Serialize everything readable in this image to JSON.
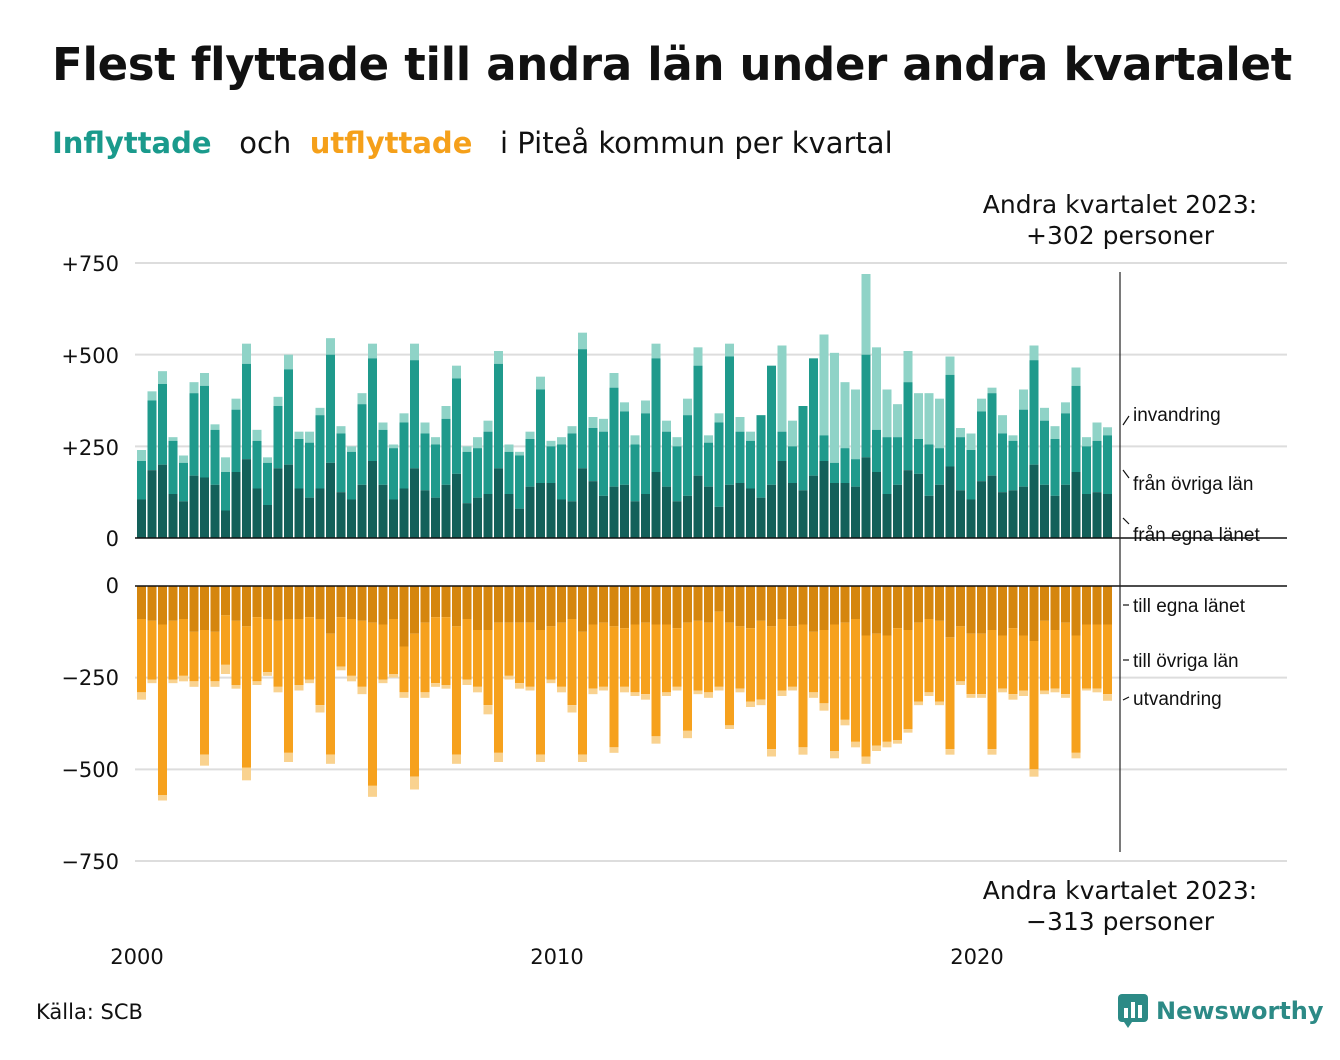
{
  "title": "Flest flyttade till andra län under andra kvartalet",
  "subtitle": {
    "part1": "Inflyttade",
    "part2": "och",
    "part3": "utflyttade",
    "part4": "i Piteå kommun per kvartal"
  },
  "source": "Källa: SCB",
  "logo_text": "Newsworthy",
  "colors": {
    "in_local": "#13605a",
    "in_other": "#1f9a8c",
    "in_immig": "#8fd3c7",
    "out_local": "#d5860e",
    "out_other": "#f6a11d",
    "out_emig": "#f9d28f"
  },
  "chart_data": {
    "type": "bar",
    "stacked": true,
    "diverging": true,
    "x_start": "2000 Q1",
    "x_end": "2023 Q2",
    "x_ticks": [
      "2000",
      "2010",
      "2020"
    ],
    "y_ticks_top": [
      "+750",
      "+500",
      "+250",
      "0"
    ],
    "y_ticks_bottom": [
      "0",
      "−250",
      "−500",
      "−750"
    ],
    "ylim_top": [
      0,
      750
    ],
    "ylim_bottom": [
      -750,
      0
    ],
    "labels_top": [
      "invandring",
      "från övriga län",
      "från egna länet"
    ],
    "labels_bottom": [
      "till egna länet",
      "till övriga län",
      "utvandring"
    ],
    "annotation_top": [
      "Andra kvartalet 2023:",
      "+302 personer"
    ],
    "annotation_bottom": [
      "Andra kvartalet 2023:",
      "−313 personer"
    ],
    "inflyttade_total": [
      240,
      400,
      455,
      275,
      225,
      425,
      450,
      310,
      220,
      380,
      530,
      295,
      220,
      385,
      500,
      290,
      290,
      355,
      545,
      305,
      250,
      395,
      530,
      315,
      255,
      340,
      530,
      315,
      275,
      360,
      470,
      250,
      275,
      320,
      510,
      255,
      235,
      290,
      440,
      265,
      275,
      305,
      560,
      330,
      325,
      450,
      370,
      280,
      375,
      530,
      320,
      275,
      380,
      520,
      280,
      340,
      530,
      330,
      290,
      280,
      410,
      525,
      320,
      280,
      395,
      555,
      505,
      425,
      405,
      720,
      520,
      405,
      365,
      510,
      395,
      395,
      380,
      495,
      300,
      285,
      380,
      410,
      335,
      280,
      405,
      525,
      355,
      305,
      370,
      465,
      275,
      315,
      302
    ],
    "inflyttade_other_top": [
      210,
      375,
      420,
      265,
      205,
      395,
      415,
      295,
      180,
      350,
      475,
      265,
      205,
      360,
      460,
      270,
      260,
      335,
      500,
      285,
      235,
      365,
      490,
      295,
      245,
      315,
      485,
      285,
      255,
      325,
      435,
      235,
      245,
      290,
      475,
      235,
      225,
      270,
      405,
      250,
      255,
      285,
      515,
      300,
      290,
      410,
      345,
      255,
      340,
      490,
      290,
      250,
      335,
      470,
      260,
      315,
      495,
      290,
      265,
      335,
      470,
      290,
      250,
      360,
      490,
      280,
      205,
      245,
      215,
      500,
      295,
      275,
      275,
      425,
      270,
      255,
      245,
      445,
      275,
      240,
      345,
      395,
      285,
      265,
      350,
      485,
      320,
      270,
      340,
      415,
      250,
      265,
      280
    ],
    "inflyttade_local": [
      105,
      185,
      200,
      120,
      100,
      170,
      165,
      145,
      75,
      180,
      215,
      135,
      90,
      190,
      200,
      135,
      110,
      135,
      205,
      125,
      105,
      145,
      210,
      145,
      105,
      135,
      190,
      130,
      110,
      145,
      175,
      95,
      110,
      120,
      190,
      120,
      80,
      140,
      150,
      150,
      105,
      100,
      190,
      155,
      115,
      140,
      145,
      100,
      120,
      180,
      140,
      100,
      115,
      170,
      140,
      85,
      145,
      150,
      135,
      110,
      145,
      210,
      150,
      130,
      170,
      210,
      150,
      150,
      140,
      220,
      180,
      120,
      145,
      185,
      175,
      115,
      145,
      195,
      130,
      105,
      155,
      170,
      125,
      130,
      140,
      200,
      145,
      115,
      145,
      180,
      120,
      125,
      120
    ],
    "utflyttade_total": [
      310,
      265,
      585,
      265,
      260,
      275,
      490,
      275,
      240,
      280,
      530,
      270,
      245,
      290,
      480,
      285,
      265,
      345,
      485,
      230,
      260,
      295,
      575,
      265,
      250,
      305,
      555,
      305,
      275,
      280,
      485,
      270,
      290,
      350,
      480,
      255,
      280,
      285,
      480,
      265,
      290,
      345,
      480,
      295,
      285,
      455,
      290,
      300,
      310,
      430,
      300,
      285,
      415,
      295,
      305,
      285,
      390,
      290,
      330,
      325,
      465,
      300,
      285,
      460,
      305,
      340,
      470,
      380,
      440,
      485,
      450,
      440,
      430,
      400,
      325,
      300,
      325,
      460,
      270,
      305,
      305,
      460,
      290,
      310,
      300,
      520,
      295,
      290,
      305,
      470,
      285,
      290,
      313
    ],
    "utflyttade_other_bottom": [
      290,
      255,
      570,
      255,
      245,
      260,
      460,
      260,
      215,
      270,
      495,
      260,
      235,
      275,
      455,
      270,
      255,
      325,
      460,
      220,
      245,
      275,
      545,
      255,
      240,
      290,
      520,
      290,
      265,
      270,
      460,
      255,
      275,
      325,
      455,
      245,
      265,
      275,
      460,
      255,
      275,
      325,
      460,
      280,
      275,
      440,
      275,
      290,
      295,
      410,
      290,
      275,
      395,
      285,
      290,
      275,
      380,
      280,
      315,
      310,
      445,
      285,
      275,
      440,
      290,
      320,
      450,
      365,
      425,
      465,
      435,
      425,
      420,
      390,
      315,
      290,
      315,
      445,
      260,
      295,
      295,
      445,
      280,
      295,
      285,
      500,
      285,
      280,
      295,
      455,
      280,
      280,
      295
    ],
    "utflyttade_local": [
      90,
      95,
      105,
      95,
      90,
      125,
      120,
      125,
      80,
      95,
      110,
      85,
      90,
      95,
      90,
      90,
      85,
      90,
      130,
      85,
      90,
      95,
      100,
      105,
      90,
      165,
      130,
      100,
      85,
      85,
      110,
      90,
      120,
      120,
      100,
      100,
      100,
      100,
      120,
      110,
      100,
      90,
      125,
      105,
      100,
      110,
      115,
      105,
      100,
      105,
      105,
      115,
      100,
      95,
      100,
      70,
      100,
      110,
      115,
      95,
      110,
      90,
      110,
      105,
      125,
      120,
      105,
      100,
      90,
      135,
      130,
      135,
      115,
      120,
      100,
      90,
      95,
      140,
      110,
      130,
      130,
      120,
      135,
      115,
      135,
      150,
      95,
      120,
      100,
      135,
      105,
      105,
      105
    ]
  }
}
